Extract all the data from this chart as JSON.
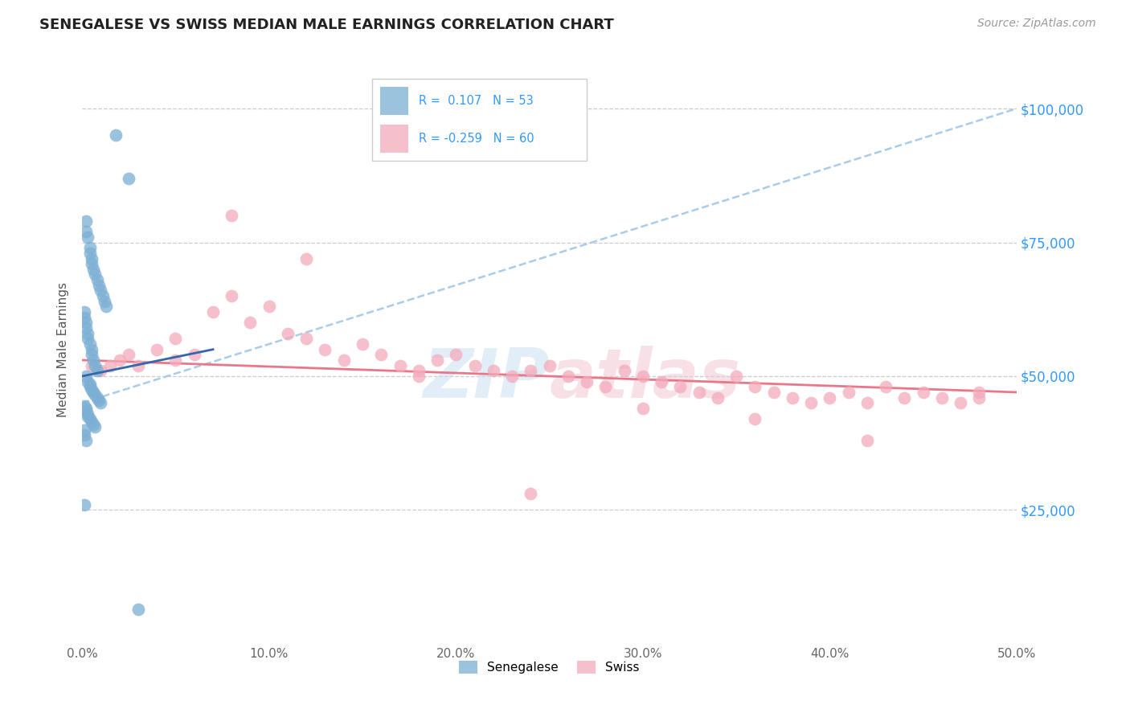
{
  "title": "SENEGALESE VS SWISS MEDIAN MALE EARNINGS CORRELATION CHART",
  "source": "Source: ZipAtlas.com",
  "ylabel": "Median Male Earnings",
  "xlim": [
    0.0,
    0.5
  ],
  "ylim": [
    0,
    110000
  ],
  "yticks": [
    0,
    25000,
    50000,
    75000,
    100000
  ],
  "ytick_labels": [
    "",
    "$25,000",
    "$50,000",
    "$75,000",
    "$100,000"
  ],
  "xticks": [
    0.0,
    0.1,
    0.2,
    0.3,
    0.4,
    0.5
  ],
  "xtick_labels": [
    "0.0%",
    "10.0%",
    "20.0%",
    "30.0%",
    "40.0%",
    "50.0%"
  ],
  "blue_color": "#7BAFD4",
  "pink_color": "#F4AABB",
  "trend_blue_color": "#AACCE8",
  "trend_pink_color": "#E8778A",
  "blue_line_color": "#3366AA",
  "blue_scatter_x": [
    0.018,
    0.025,
    0.002,
    0.002,
    0.003,
    0.004,
    0.004,
    0.005,
    0.005,
    0.006,
    0.007,
    0.008,
    0.009,
    0.01,
    0.011,
    0.012,
    0.013,
    0.001,
    0.001,
    0.002,
    0.002,
    0.003,
    0.003,
    0.004,
    0.005,
    0.005,
    0.006,
    0.007,
    0.008,
    0.002,
    0.003,
    0.004,
    0.004,
    0.005,
    0.006,
    0.007,
    0.008,
    0.009,
    0.01,
    0.001,
    0.002,
    0.002,
    0.003,
    0.003,
    0.004,
    0.005,
    0.006,
    0.007,
    0.001,
    0.001,
    0.002,
    0.03,
    0.001
  ],
  "blue_scatter_y": [
    95000,
    87000,
    79000,
    77000,
    76000,
    74000,
    73000,
    72000,
    71000,
    70000,
    69000,
    68000,
    67000,
    66000,
    65000,
    64000,
    63000,
    62000,
    61000,
    60000,
    59000,
    58000,
    57000,
    56000,
    55000,
    54000,
    53000,
    52000,
    51000,
    50000,
    49000,
    48500,
    48000,
    47500,
    47000,
    46500,
    46000,
    45500,
    45000,
    44500,
    44000,
    43500,
    43000,
    42500,
    42000,
    41500,
    41000,
    40500,
    40000,
    39000,
    38000,
    6500,
    26000
  ],
  "pink_scatter_x": [
    0.005,
    0.01,
    0.015,
    0.02,
    0.025,
    0.03,
    0.04,
    0.05,
    0.06,
    0.07,
    0.08,
    0.09,
    0.1,
    0.11,
    0.12,
    0.13,
    0.14,
    0.15,
    0.16,
    0.17,
    0.18,
    0.19,
    0.2,
    0.21,
    0.22,
    0.23,
    0.24,
    0.25,
    0.26,
    0.27,
    0.28,
    0.29,
    0.3,
    0.31,
    0.32,
    0.33,
    0.34,
    0.35,
    0.36,
    0.37,
    0.38,
    0.39,
    0.4,
    0.41,
    0.42,
    0.43,
    0.44,
    0.45,
    0.46,
    0.47,
    0.48,
    0.05,
    0.08,
    0.12,
    0.18,
    0.24,
    0.3,
    0.36,
    0.42,
    0.48
  ],
  "pink_scatter_y": [
    52000,
    51000,
    52000,
    53000,
    54000,
    52000,
    55000,
    57000,
    54000,
    62000,
    65000,
    60000,
    63000,
    58000,
    57000,
    55000,
    53000,
    56000,
    54000,
    52000,
    51000,
    53000,
    54000,
    52000,
    51000,
    50000,
    51000,
    52000,
    50000,
    49000,
    48000,
    51000,
    50000,
    49000,
    48000,
    47000,
    46000,
    50000,
    48000,
    47000,
    46000,
    45000,
    46000,
    47000,
    45000,
    48000,
    46000,
    47000,
    46000,
    45000,
    46000,
    53000,
    80000,
    72000,
    50000,
    28000,
    44000,
    42000,
    38000,
    47000
  ],
  "blue_trend_x0": 0.0,
  "blue_trend_y0": 45000,
  "blue_trend_x1": 0.5,
  "blue_trend_y1": 100000,
  "pink_trend_x0": 0.0,
  "pink_trend_y0": 53000,
  "pink_trend_x1": 0.5,
  "pink_trend_y1": 47000
}
